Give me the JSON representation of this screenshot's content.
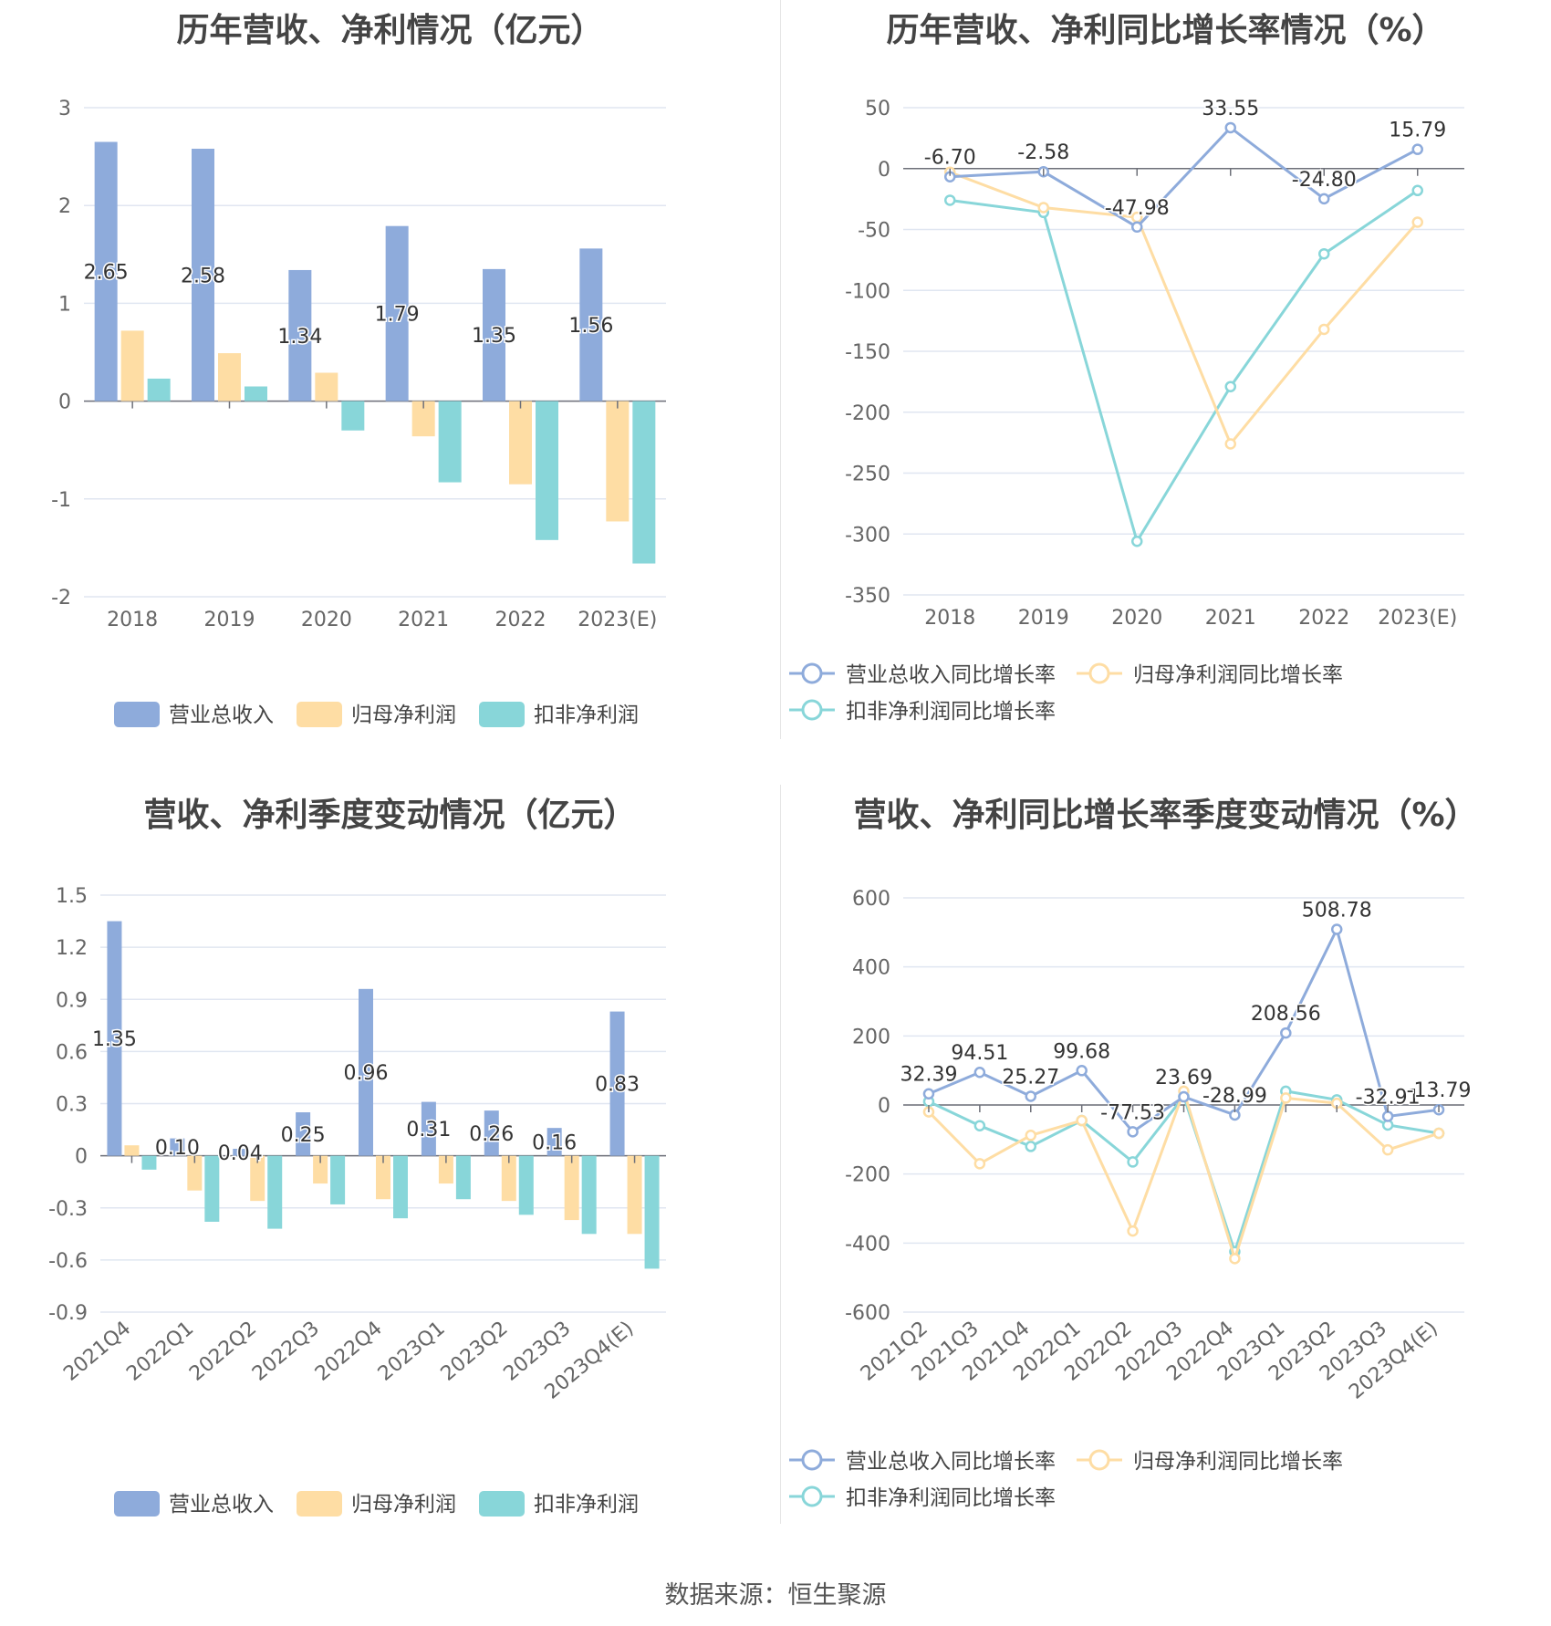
{
  "source": "数据来源：恒生聚源",
  "charts": [
    {
      "title": "历年营收、净利情况（亿元）",
      "legend": [
        {
          "name": "营业总收入",
          "color": "#8eabdb"
        },
        {
          "name": "归母净利润",
          "color": "#fedda4"
        },
        {
          "name": "扣非净利润",
          "color": "#88d6d9"
        }
      ]
    },
    {
      "title": "历年营收、净利同比增长率情况（%）",
      "legend": [
        {
          "name": "营业总收入同比增长率",
          "color": "#8eabdb"
        },
        {
          "name": "归母净利润同比增长率",
          "color": "#fedda4"
        },
        {
          "name": "扣非净利润同比增长率",
          "color": "#88d6d9"
        }
      ]
    },
    {
      "title": "营收、净利季度变动情况（亿元）",
      "legend": [
        {
          "name": "营业总收入",
          "color": "#8eabdb"
        },
        {
          "name": "归母净利润",
          "color": "#fedda4"
        },
        {
          "name": "扣非净利润",
          "color": "#88d6d9"
        }
      ]
    },
    {
      "title": "营收、净利同比增长率季度变动情况（%）",
      "legend": [
        {
          "name": "营业总收入同比增长率",
          "color": "#8eabdb"
        },
        {
          "name": "归母净利润同比增长率",
          "color": "#fedda4"
        },
        {
          "name": "扣非净利润同比增长率",
          "color": "#88d6d9"
        }
      ]
    }
  ],
  "chart_data": [
    {
      "type": "bar",
      "title": "历年营收、净利情况（亿元）",
      "categories": [
        "2018",
        "2019",
        "2020",
        "2021",
        "2022",
        "2023(E)"
      ],
      "ylim": [
        -2,
        3
      ],
      "yticks": [
        3,
        2,
        1,
        0,
        -1,
        -2
      ],
      "series": [
        {
          "name": "营业总收入",
          "values": [
            2.65,
            2.58,
            1.34,
            1.79,
            1.35,
            1.56
          ],
          "labels": [
            "2.65",
            "2.58",
            "1.34",
            "1.79",
            "1.35",
            "1.56"
          ]
        },
        {
          "name": "归母净利润",
          "values": [
            0.72,
            0.49,
            0.29,
            -0.36,
            -0.85,
            -1.23
          ]
        },
        {
          "name": "扣非净利润",
          "values": [
            0.23,
            0.15,
            -0.3,
            -0.83,
            -1.42,
            -1.66
          ]
        }
      ]
    },
    {
      "type": "line",
      "title": "历年营收、净利同比增长率情况（%）",
      "categories": [
        "2018",
        "2019",
        "2020",
        "2021",
        "2022",
        "2023(E)"
      ],
      "ylim": [
        -350,
        50
      ],
      "yticks": [
        50,
        0,
        -50,
        -100,
        -150,
        -200,
        -250,
        -300,
        -350
      ],
      "series": [
        {
          "name": "营业总收入同比增长率",
          "values": [
            -6.7,
            -2.58,
            -47.98,
            33.55,
            -24.8,
            15.79
          ],
          "labels": [
            "-6.70",
            "-2.58",
            "-47.98",
            "33.55",
            "-24.80",
            "15.79"
          ]
        },
        {
          "name": "归母净利润同比增长率",
          "values": [
            -3,
            -32,
            -40,
            -226,
            -132,
            -44
          ]
        },
        {
          "name": "扣非净利润同比增长率",
          "values": [
            -26,
            -36,
            -306,
            -179,
            -70,
            -18
          ]
        }
      ]
    },
    {
      "type": "bar",
      "title": "营收、净利季度变动情况（亿元）",
      "categories": [
        "2021Q4",
        "2022Q1",
        "2022Q2",
        "2022Q3",
        "2022Q4",
        "2023Q1",
        "2023Q2",
        "2023Q3",
        "2023Q4(E)"
      ],
      "ylim": [
        -0.9,
        1.5
      ],
      "yticks": [
        1.5,
        1.2,
        0.9,
        0.6,
        0.3,
        0,
        -0.3,
        -0.6,
        -0.9
      ],
      "series": [
        {
          "name": "营业总收入",
          "values": [
            1.35,
            0.1,
            0.04,
            0.25,
            0.96,
            0.31,
            0.26,
            0.16,
            0.83
          ],
          "labels": [
            "1.35",
            "0.10",
            "0.04",
            "0.25",
            "0.96",
            "0.31",
            "0.26",
            "0.16",
            "0.83"
          ]
        },
        {
          "name": "归母净利润",
          "values": [
            0.06,
            -0.2,
            -0.26,
            -0.16,
            -0.25,
            -0.16,
            -0.26,
            -0.37,
            -0.45
          ]
        },
        {
          "name": "扣非净利润",
          "values": [
            -0.08,
            -0.38,
            -0.42,
            -0.28,
            -0.36,
            -0.25,
            -0.34,
            -0.45,
            -0.65
          ]
        }
      ]
    },
    {
      "type": "line",
      "title": "营收、净利同比增长率季度变动情况（%）",
      "categories": [
        "2021Q2",
        "2021Q3",
        "2021Q4",
        "2022Q1",
        "2022Q2",
        "2022Q3",
        "2022Q4",
        "2023Q1",
        "2023Q2",
        "2023Q3",
        "2023Q4(E)"
      ],
      "ylim": [
        -600,
        600
      ],
      "yticks": [
        600,
        400,
        200,
        0,
        -200,
        -400,
        -600
      ],
      "series": [
        {
          "name": "营业总收入同比增长率",
          "values": [
            32.39,
            94.51,
            25.27,
            99.68,
            -77.53,
            23.69,
            -28.99,
            208.56,
            508.78,
            -32.91,
            -13.79
          ],
          "labels": [
            "32.39",
            "94.51",
            "25.27",
            "99.68",
            "-77.53",
            "23.69",
            "-28.99",
            "208.56",
            "508.78",
            "-32.91",
            "-13.79"
          ]
        },
        {
          "name": "归母净利润同比增长率",
          "values": [
            -20,
            -170,
            -88,
            -45,
            -365,
            40,
            -445,
            20,
            5,
            -130,
            -82
          ]
        },
        {
          "name": "扣非净利润同比增长率",
          "values": [
            10,
            -60,
            -120,
            -45,
            -165,
            25,
            -425,
            40,
            15,
            -58,
            -82
          ]
        }
      ]
    }
  ]
}
